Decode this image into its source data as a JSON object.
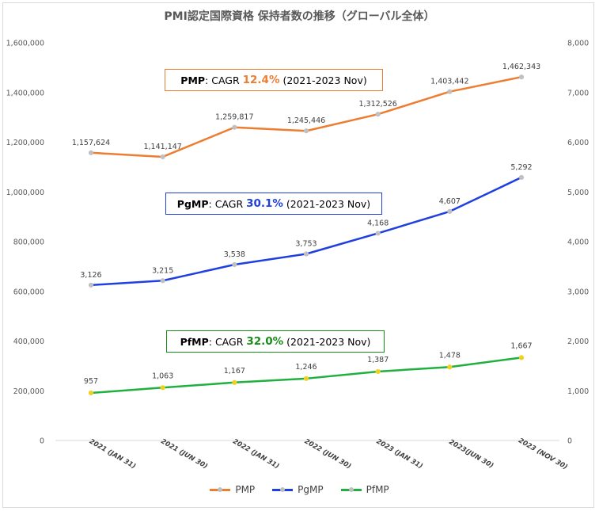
{
  "chart_data": {
    "type": "line",
    "title": "PMI認定国際資格 保持者数の推移（グローバル全体）",
    "categories": [
      "2021 (JAN 31)",
      "2021 (JUN 30)",
      "2022 (JAN 31)",
      "2022 (JUN 30)",
      "2023 (JAN 31)",
      "2023(JUN 30)",
      "2023 (NOV 30)"
    ],
    "left_axis": {
      "range": [
        0,
        1600000
      ],
      "ticks": [
        "0",
        "200,000",
        "400,000",
        "600,000",
        "800,000",
        "1,000,000",
        "1,200,000",
        "1,400,000",
        "1,600,000"
      ]
    },
    "right_axis": {
      "range": [
        0,
        8000
      ],
      "ticks": [
        "0",
        "1,000",
        "2,000",
        "3,000",
        "4,000",
        "5,000",
        "6,000",
        "7,000",
        "8,000"
      ]
    },
    "grid": false,
    "legend_position": "bottom",
    "series": [
      {
        "name": "PMP",
        "axis": "left",
        "color": "#ED7D31",
        "values": [
          1157624,
          1141147,
          1259817,
          1245446,
          1312526,
          1403442,
          1462343
        ],
        "labels": [
          "1,157,624",
          "1,141,147",
          "1,259,817",
          "1,245,446",
          "1,312,526",
          "1,403,442",
          "1,462,343"
        ]
      },
      {
        "name": "PgMP",
        "axis": "right",
        "color": "#1F3FE0",
        "values": [
          3126,
          3215,
          3538,
          3753,
          4168,
          4607,
          5292
        ],
        "labels": [
          "3,126",
          "3,215",
          "3,538",
          "3,753",
          "4,168",
          "4,607",
          "5,292"
        ]
      },
      {
        "name": "PfMP",
        "axis": "right",
        "color": "#20B040",
        "values": [
          957,
          1063,
          1167,
          1246,
          1387,
          1478,
          1667
        ],
        "labels": [
          "957",
          "1,063",
          "1,167",
          "1,246",
          "1,387",
          "1,478",
          "1,667"
        ]
      }
    ],
    "annotations": [
      {
        "name": "PMP",
        "prefix": ": CAGR ",
        "value": "12.4%",
        "suffix": " (2021-2023 Nov)",
        "color": "#ED7D31"
      },
      {
        "name": "PgMP",
        "prefix": ": CAGR ",
        "value": "30.1%",
        "suffix": " (2021-2023 Nov)",
        "color": "#1F3FE0"
      },
      {
        "name": "PfMP",
        "prefix": ": CAGR ",
        "value": "32.0%",
        "suffix": " (2021-2023 Nov)",
        "color": "#1A8C1A"
      }
    ]
  }
}
